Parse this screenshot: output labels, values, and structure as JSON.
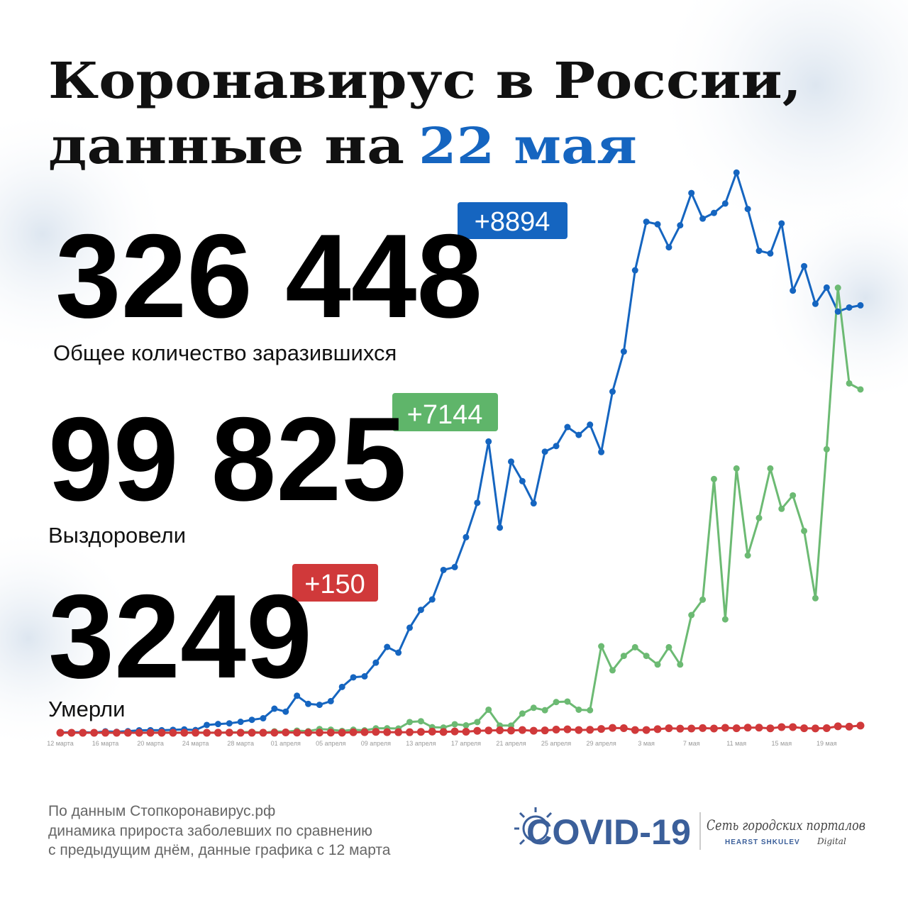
{
  "header": {
    "title_line1": "Коронавирус в России,",
    "title_line2_prefix": "данные на",
    "title_line2_date": "22 мая"
  },
  "stats": [
    {
      "value": "326 448",
      "delta": "+8894",
      "label": "Общее количество заразившихся"
    },
    {
      "value": "99 825",
      "delta": "+7144",
      "label": "Выздоровели"
    },
    {
      "value": "3249",
      "delta": "+150",
      "label": "Умерли"
    }
  ],
  "chart_data": {
    "type": "line",
    "categories": [
      "12 марта",
      null,
      null,
      null,
      "16 марта",
      null,
      null,
      null,
      "20 марта",
      null,
      null,
      null,
      "24 марта",
      null,
      null,
      null,
      "28 марта",
      null,
      null,
      null,
      "01 апреля",
      null,
      null,
      null,
      "05 апреля",
      null,
      null,
      null,
      "09 апреля",
      null,
      null,
      null,
      "13 апреля",
      null,
      null,
      null,
      "17 апреля",
      null,
      null,
      null,
      "21 апреля",
      null,
      null,
      null,
      "25 апреля",
      null,
      null,
      null,
      "29 апреля",
      null,
      null,
      null,
      "3 мая",
      null,
      null,
      null,
      "7 мая",
      null,
      null,
      null,
      "11 мая",
      null,
      null,
      null,
      "15 мая",
      null,
      null,
      null,
      "19 мая",
      null,
      null,
      null
    ],
    "ylim": [
      0,
      12000
    ],
    "series": [
      {
        "color": "#1565c0",
        "values": [
          6,
          11,
          14,
          4,
          30,
          21,
          33,
          52,
          54,
          53,
          61,
          71,
          57,
          163,
          182,
          196,
          228,
          270,
          302,
          501,
          440,
          771,
          601,
          582,
          658,
          954,
          1154,
          1175,
          1459,
          1786,
          1667,
          2186,
          2558,
          2774,
          3388,
          3448,
          4070,
          4785,
          6060,
          4268,
          5642,
          5236,
          4774,
          5849,
          5966,
          6361,
          6198,
          6411,
          5841,
          7099,
          7933,
          9623,
          10633,
          10581,
          10102,
          10559,
          11231,
          10699,
          10817,
          11012,
          11656,
          10899,
          10028,
          9974,
          10598,
          9200,
          9709,
          8926,
          9263,
          8764,
          8849,
          8894
        ]
      },
      {
        "color": "#6cba73",
        "values": [
          0,
          0,
          0,
          1,
          3,
          3,
          0,
          3,
          4,
          6,
          1,
          5,
          6,
          5,
          1,
          8,
          13,
          21,
          1,
          30,
          22,
          45,
          34,
          78,
          65,
          39,
          64,
          51,
          92,
          94,
          88,
          224,
          240,
          116,
          109,
          178,
          155,
          224,
          480,
          150,
          150,
          400,
          520,
          470,
          640,
          650,
          480,
          470,
          1800,
          1300,
          1600,
          1780,
          1600,
          1420,
          1780,
          1420,
          2450,
          2770,
          5280,
          2360,
          5500,
          3690,
          4470,
          5500,
          4660,
          4940,
          4200,
          2800,
          5900,
          9260,
          7270,
          7144
        ]
      },
      {
        "color": "#d0393a",
        "values": [
          0,
          0,
          0,
          0,
          1,
          0,
          0,
          0,
          0,
          0,
          0,
          0,
          1,
          0,
          1,
          3,
          1,
          1,
          1,
          2,
          7,
          4,
          4,
          4,
          4,
          2,
          11,
          13,
          18,
          13,
          12,
          12,
          18,
          24,
          17,
          28,
          22,
          41,
          48,
          51,
          47,
          57,
          42,
          49,
          66,
          72,
          58,
          62,
          79,
          101,
          96,
          57,
          58,
          76,
          95,
          86,
          88,
          98,
          88,
          104,
          94,
          107,
          107,
          93,
          119,
          119,
          94,
          91,
          96,
          135,
          127,
          150
        ]
      }
    ]
  },
  "footer": {
    "lines": [
      "По данным Стопкоронавирус.рф",
      "динамика прироста заболевших по сравнению",
      "с предыдущим днём, данные графика с 12 марта"
    ]
  },
  "logo": {
    "name": "COVID-19",
    "network": "Сеть городских порталов",
    "brand": "HEARST SHKULEV",
    "brand_suffix": "Digital"
  }
}
